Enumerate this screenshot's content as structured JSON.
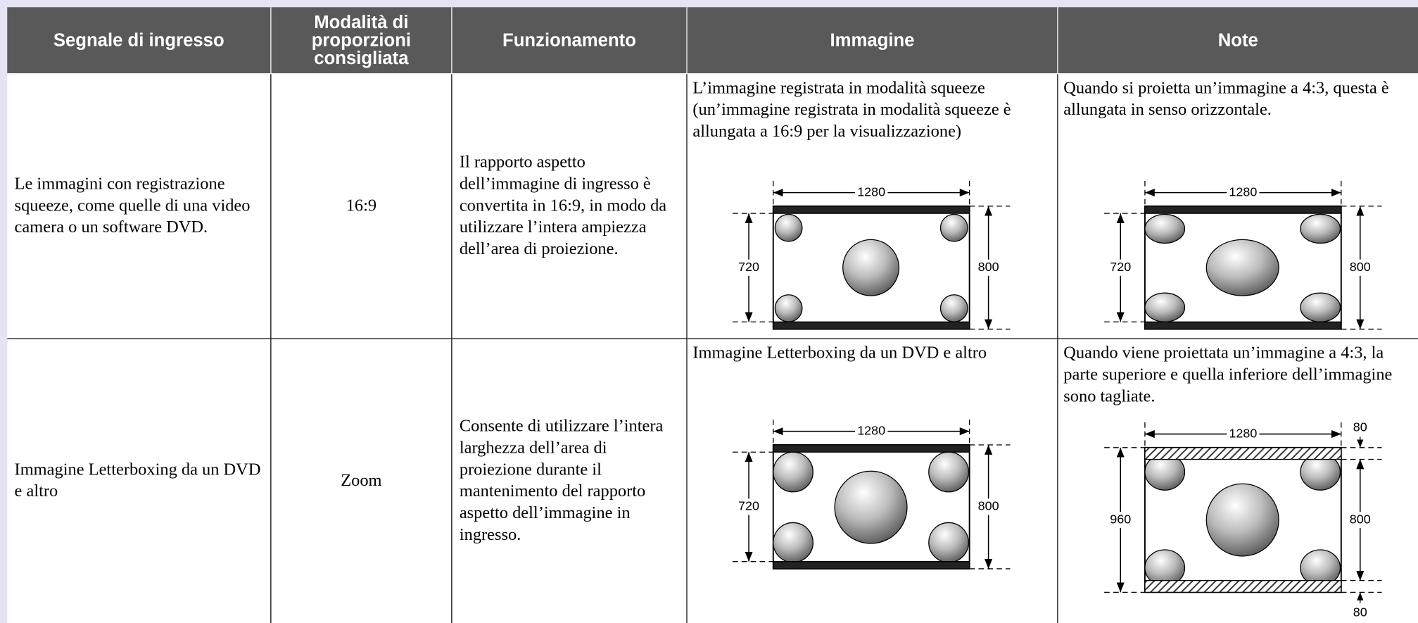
{
  "table": {
    "header": [
      "Segnale di ingresso",
      "Modalità di proporzioni consigliata",
      "Funzionamento",
      "Immagine",
      "Note"
    ],
    "rows": [
      {
        "signal": "Le immagini con registrazione squeeze, come quelle di una video camera o un software DVD.",
        "mode": "16:9",
        "operation": "Il rapporto aspetto dell’immagine di ingresso è convertita in 16:9, in modo da utilizzare l’intera ampiezza dell’area di proiezione.",
        "image": {
          "caption": "L’immagine registrata in modalità squeeze (un’immagine registrata in modalità squeeze è allungata a 16:9 per la visualizzazione)",
          "width": 1280,
          "left": 720,
          "right": 800
        },
        "note": {
          "text": "Quando si proietta un’immagine a 4:3, questa è allungata in senso orizzontale.",
          "width": 1280,
          "left": 720,
          "right": 800
        }
      },
      {
        "signal": "Immagine Letterboxing da un DVD e altro",
        "mode": "Zoom",
        "operation": "Consente di utilizzare l’intera larghezza dell’area di proiezione durante il mantenimento del rapporto aspetto dell’immagine in ingresso.",
        "image": {
          "caption": "Immagine Letterboxing da un DVD e altro",
          "width": 1280,
          "left": 720,
          "right": 800
        },
        "note": {
          "text": "Quando viene proiettata un’immagine a 4:3, la parte superiore e quella inferiore dell’immagine sono tagliate.",
          "width": 1280,
          "left": 960,
          "right": 800,
          "top": 80,
          "bottom": 80
        }
      }
    ]
  }
}
